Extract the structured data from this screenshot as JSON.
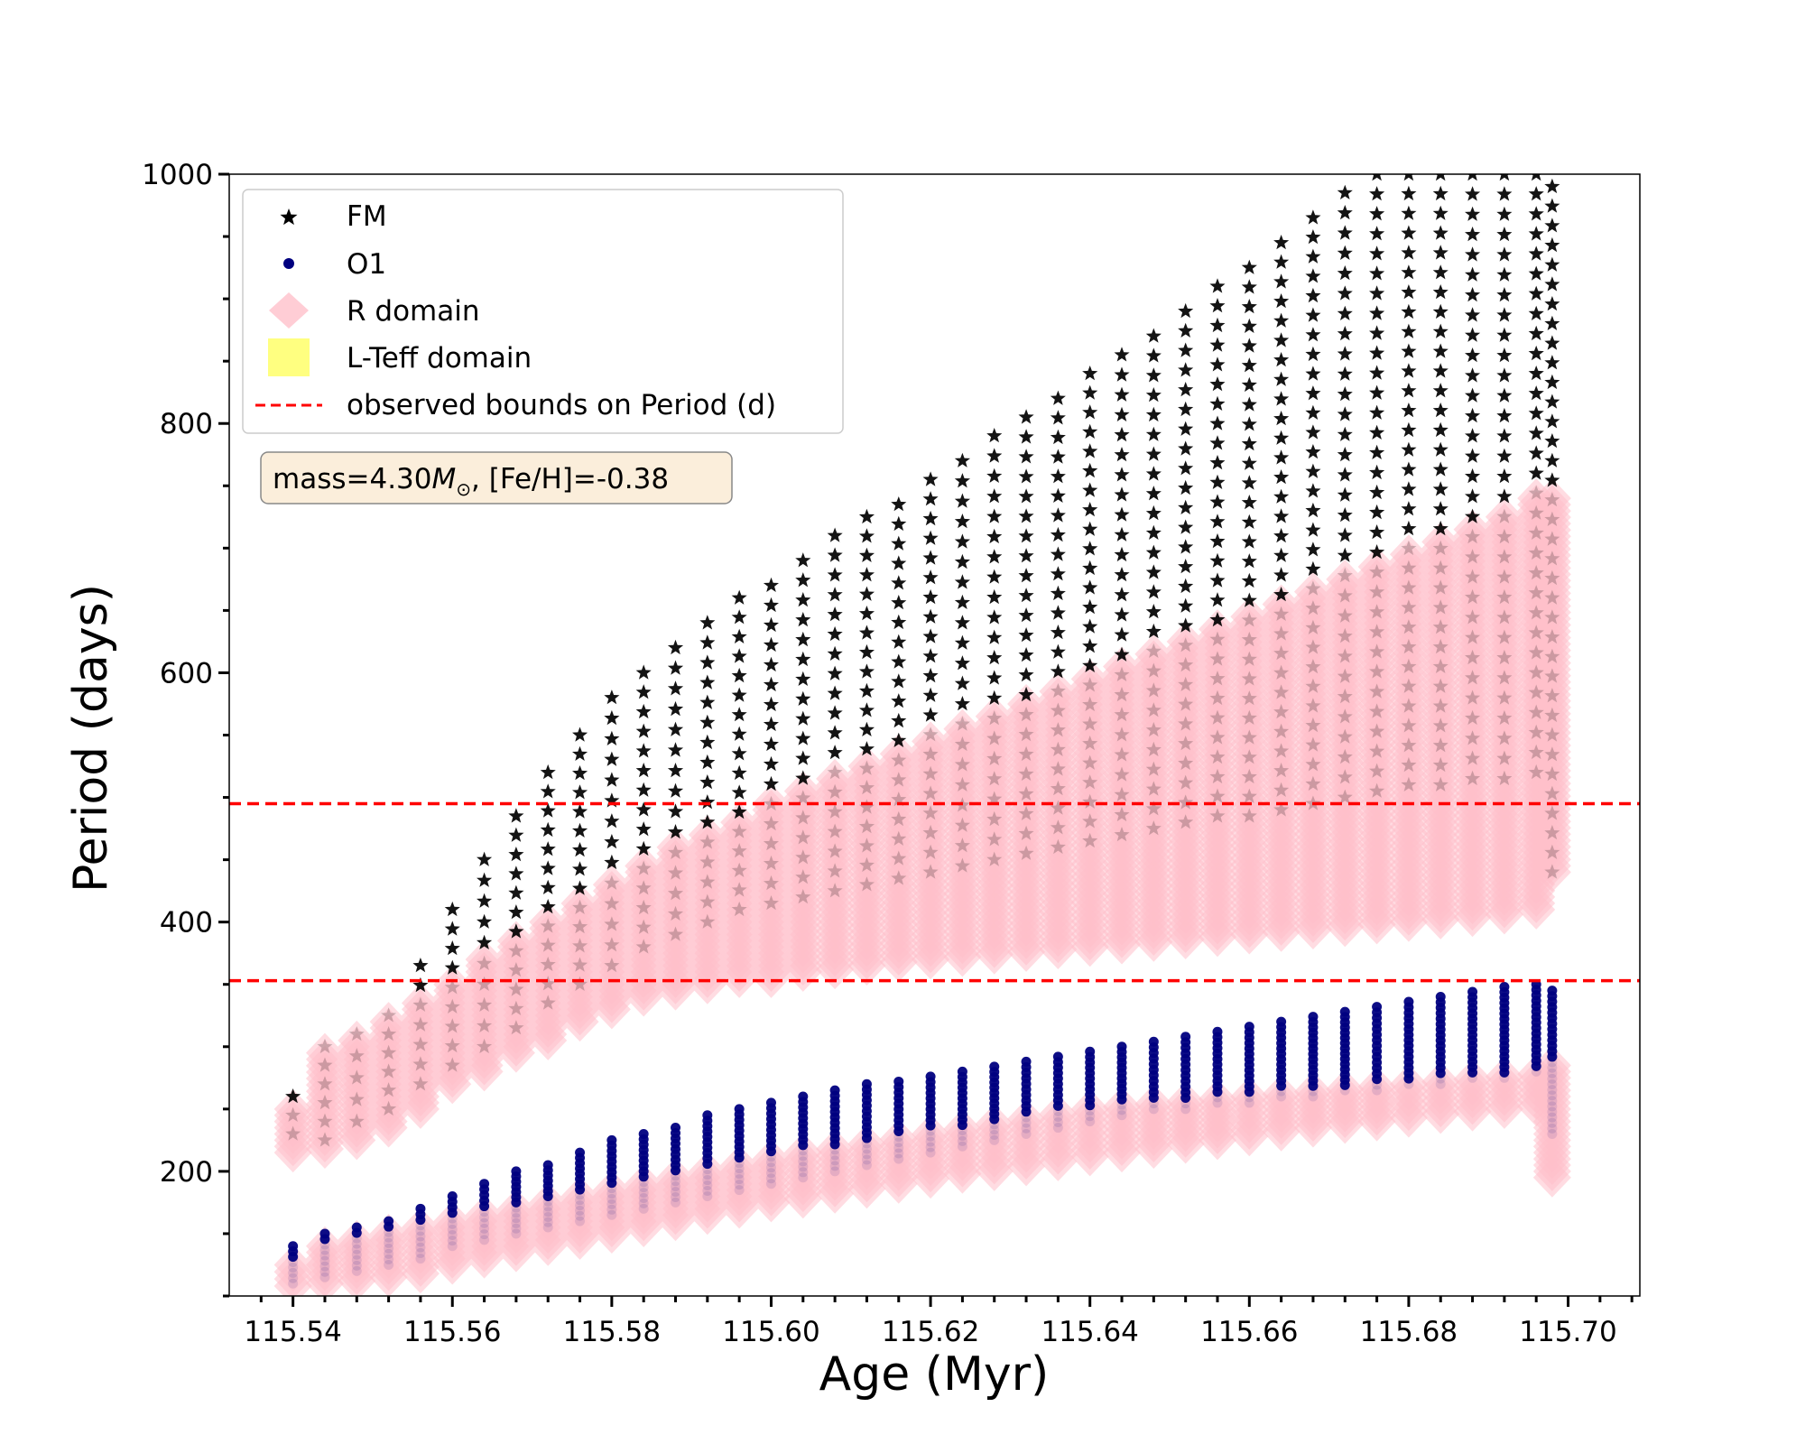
{
  "chart_data": {
    "type": "scatter",
    "xlabel": "Age (Myr)",
    "ylabel": "Period (days)",
    "xlim": [
      115.532,
      115.709
    ],
    "ylim": [
      100,
      1000
    ],
    "xticks": [
      115.54,
      115.56,
      115.58,
      115.6,
      115.62,
      115.64,
      115.66,
      115.68,
      115.7
    ],
    "xtick_labels": [
      "115.54",
      "115.56",
      "115.58",
      "115.60",
      "115.62",
      "115.64",
      "115.66",
      "115.68",
      "115.70"
    ],
    "xminor_step": 0.004,
    "yticks": [
      200,
      400,
      600,
      800,
      1000
    ],
    "ytick_labels": [
      "200",
      "400",
      "600",
      "800",
      "1000"
    ],
    "yminor_step": 50,
    "annotation": {
      "prefix": "mass=4.30",
      "symbol": "M",
      "subscript": "⊙",
      "suffix": ", [Fe/H]=-0.38"
    },
    "observed_bounds": [
      495,
      353
    ],
    "ages": [
      115.54,
      115.544,
      115.548,
      115.552,
      115.556,
      115.56,
      115.564,
      115.568,
      115.572,
      115.576,
      115.58,
      115.584,
      115.588,
      115.592,
      115.596,
      115.6,
      115.604,
      115.608,
      115.612,
      115.616,
      115.62,
      115.624,
      115.628,
      115.632,
      115.636,
      115.64,
      115.644,
      115.648,
      115.652,
      115.656,
      115.66,
      115.664,
      115.668,
      115.672,
      115.676,
      115.68,
      115.684,
      115.688,
      115.692,
      115.696,
      115.698
    ],
    "series": [
      {
        "name": "FM",
        "marker": "star",
        "color": "#000000",
        "period_min": [
          230,
          225,
          240,
          250,
          270,
          285,
          300,
          315,
          335,
          350,
          365,
          380,
          390,
          400,
          410,
          415,
          420,
          425,
          430,
          435,
          440,
          445,
          450,
          455,
          460,
          465,
          470,
          475,
          480,
          485,
          485,
          490,
          495,
          500,
          505,
          510,
          510,
          515,
          515,
          520,
          440
        ],
        "period_max": [
          260,
          300,
          310,
          325,
          365,
          410,
          450,
          485,
          520,
          550,
          580,
          600,
          620,
          640,
          660,
          670,
          690,
          710,
          725,
          735,
          755,
          770,
          790,
          805,
          820,
          840,
          855,
          870,
          890,
          910,
          925,
          945,
          965,
          985,
          1000,
          1000,
          1000,
          1000,
          1000,
          1000,
          990
        ]
      },
      {
        "name": "O1",
        "marker": "circle",
        "color": "#00007f",
        "period_min": [
          110,
          115,
          120,
          125,
          130,
          140,
          145,
          150,
          155,
          160,
          165,
          170,
          175,
          180,
          185,
          190,
          195,
          200,
          205,
          210,
          215,
          220,
          225,
          230,
          235,
          240,
          245,
          250,
          250,
          255,
          255,
          260,
          260,
          265,
          265,
          270,
          270,
          275,
          275,
          280,
          230
        ],
        "period_max": [
          140,
          150,
          155,
          160,
          170,
          180,
          190,
          200,
          205,
          215,
          225,
          230,
          235,
          245,
          250,
          255,
          260,
          265,
          270,
          272,
          276,
          280,
          284,
          288,
          292,
          296,
          300,
          304,
          308,
          312,
          316,
          320,
          324,
          328,
          332,
          336,
          340,
          344,
          348,
          350,
          345
        ]
      },
      {
        "name": "R domain",
        "marker": "diamond",
        "color": "#ffc0cb",
        "upper_min": [
          215,
          218,
          225,
          235,
          250,
          270,
          280,
          295,
          305,
          320,
          330,
          340,
          345,
          350,
          355,
          355,
          360,
          362,
          365,
          368,
          370,
          372,
          374,
          376,
          378,
          380,
          382,
          384,
          386,
          388,
          390,
          392,
          394,
          396,
          398,
          400,
          402,
          404,
          406,
          410,
          440
        ],
        "upper_max": [
          250,
          295,
          305,
          320,
          335,
          350,
          370,
          385,
          400,
          415,
          430,
          445,
          460,
          470,
          480,
          495,
          505,
          515,
          525,
          535,
          545,
          555,
          565,
          575,
          585,
          595,
          605,
          615,
          625,
          635,
          645,
          655,
          665,
          675,
          685,
          695,
          705,
          715,
          725,
          740,
          740
        ],
        "lower_min": [
          108,
          110,
          112,
          115,
          118,
          125,
          130,
          135,
          140,
          145,
          150,
          155,
          160,
          165,
          170,
          175,
          178,
          182,
          186,
          190,
          194,
          198,
          200,
          204,
          208,
          212,
          215,
          218,
          222,
          225,
          228,
          232,
          235,
          238,
          240,
          243,
          246,
          248,
          250,
          252,
          195
        ],
        "lower_max": [
          125,
          140,
          145,
          150,
          155,
          160,
          165,
          170,
          175,
          180,
          185,
          190,
          195,
          200,
          205,
          210,
          215,
          218,
          222,
          226,
          230,
          234,
          238,
          242,
          246,
          250,
          252,
          254,
          256,
          258,
          260,
          262,
          264,
          266,
          268,
          270,
          272,
          274,
          276,
          278,
          285
        ]
      },
      {
        "name": "L-Teff domain",
        "marker": "square",
        "color": "#ffff80"
      }
    ],
    "bounds_line": {
      "name": "observed bounds on Period (d)",
      "style": "dashed",
      "color": "#ff0000"
    }
  }
}
